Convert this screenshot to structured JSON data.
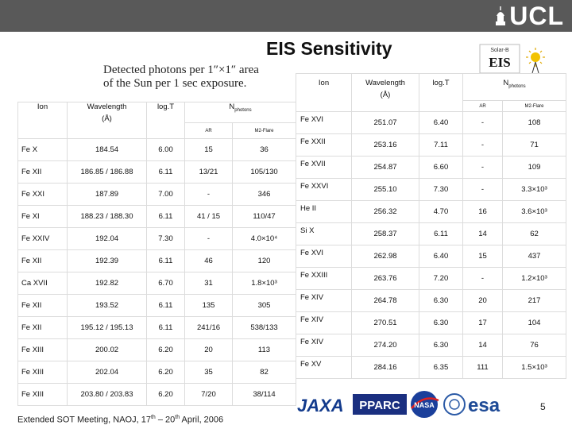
{
  "header": {
    "logo_text": "UCL",
    "title": "EIS Sensitivity",
    "subtitle_line1": "Detected photons per 1″×1″ area",
    "subtitle_line2": "of the Sun per 1 sec exposure.",
    "eis_logo_top": "Solar-B",
    "eis_logo_text": "EIS"
  },
  "left_table": {
    "headers": {
      "ion": "Ion",
      "wavelength": "Wavelength",
      "wavelength_unit": "(Å)",
      "logt": "log.T",
      "nphotons": "N",
      "nphotons_sub": "photons",
      "ar": "AR",
      "m2flare": "M2-Flare"
    },
    "rows": [
      {
        "ion": "Fe X",
        "wl": "184.54",
        "logt": "6.00",
        "ar": "15",
        "flare": "36"
      },
      {
        "ion": "Fe XII",
        "wl": "186.85 / 186.88",
        "logt": "6.11",
        "ar": "13/21",
        "flare": "105/130"
      },
      {
        "ion": "Fe XXI",
        "wl": "187.89",
        "logt": "7.00",
        "ar": "-",
        "flare": "346"
      },
      {
        "ion": "Fe XI",
        "wl": "188.23 / 188.30",
        "logt": "6.11",
        "ar": "41 / 15",
        "flare": "110/47"
      },
      {
        "ion": "Fe XXIV",
        "wl": "192.04",
        "logt": "7.30",
        "ar": "-",
        "flare": "4.0×10⁴"
      },
      {
        "ion": "Fe XII",
        "wl": "192.39",
        "logt": "6.11",
        "ar": "46",
        "flare": "120"
      },
      {
        "ion": "Ca XVII",
        "wl": "192.82",
        "logt": "6.70",
        "ar": "31",
        "flare": "1.8×10³"
      },
      {
        "ion": "Fe XII",
        "wl": "193.52",
        "logt": "6.11",
        "ar": "135",
        "flare": "305"
      },
      {
        "ion": "Fe XII",
        "wl": "195.12 / 195.13",
        "logt": "6.11",
        "ar": "241/16",
        "flare": "538/133"
      },
      {
        "ion": "Fe XIII",
        "wl": "200.02",
        "logt": "6.20",
        "ar": "20",
        "flare": "113"
      },
      {
        "ion": "Fe XIII",
        "wl": "202.04",
        "logt": "6.20",
        "ar": "35",
        "flare": "82"
      },
      {
        "ion": "Fe XIII",
        "wl": "203.80 / 203.83",
        "logt": "6.20",
        "ar": "7/20",
        "flare": "38/114"
      }
    ]
  },
  "right_table": {
    "headers": {
      "ion": "Ion",
      "wavelength": "Wavelength",
      "wavelength_unit": "(Å)",
      "logt": "log.T",
      "nphotons": "N",
      "nphotons_sub": "photons",
      "ar": "AR",
      "m2flare": "M2-Flare"
    },
    "rows": [
      {
        "ion": "Fe XVI",
        "wl": "251.07",
        "logt": "6.40",
        "ar": "-",
        "flare": "108"
      },
      {
        "ion": "Fe XXII",
        "wl": "253.16",
        "logt": "7.11",
        "ar": "-",
        "flare": "71"
      },
      {
        "ion": "Fe XVII",
        "wl": "254.87",
        "logt": "6.60",
        "ar": "-",
        "flare": "109"
      },
      {
        "ion": "Fe XXVI",
        "wl": "255.10",
        "logt": "7.30",
        "ar": "-",
        "flare": "3.3×10³"
      },
      {
        "ion": "He II",
        "wl": "256.32",
        "logt": "4.70",
        "ar": "16",
        "flare": "3.6×10³"
      },
      {
        "ion": "Si X",
        "wl": "258.37",
        "logt": "6.11",
        "ar": "14",
        "flare": "62"
      },
      {
        "ion": "Fe XVI",
        "wl": "262.98",
        "logt": "6.40",
        "ar": "15",
        "flare": "437"
      },
      {
        "ion": "Fe XXIII",
        "wl": "263.76",
        "logt": "7.20",
        "ar": "-",
        "flare": "1.2×10³"
      },
      {
        "ion": "Fe XIV",
        "wl": "264.78",
        "logt": "6.30",
        "ar": "20",
        "flare": "217"
      },
      {
        "ion": "Fe XIV",
        "wl": "270.51",
        "logt": "6.30",
        "ar": "17",
        "flare": "104"
      },
      {
        "ion": "Fe XIV",
        "wl": "274.20",
        "logt": "6.30",
        "ar": "14",
        "flare": "76"
      },
      {
        "ion": "Fe XV",
        "wl": "284.16",
        "logt": "6.35",
        "ar": "111",
        "flare": "1.5×10³"
      }
    ]
  },
  "footer": {
    "meeting_prefix": "Extended SOT Meeting, NAOJ, 17",
    "sup1": "th",
    "middle": " – 20",
    "sup2": "th",
    "suffix": " April, 2006",
    "page_number": "5"
  },
  "partner_logos": [
    "JAXA",
    "PPARC",
    "NASA",
    "esa"
  ],
  "colors": {
    "header_bar": "#595959",
    "cell_border": "#dcdcdc"
  }
}
